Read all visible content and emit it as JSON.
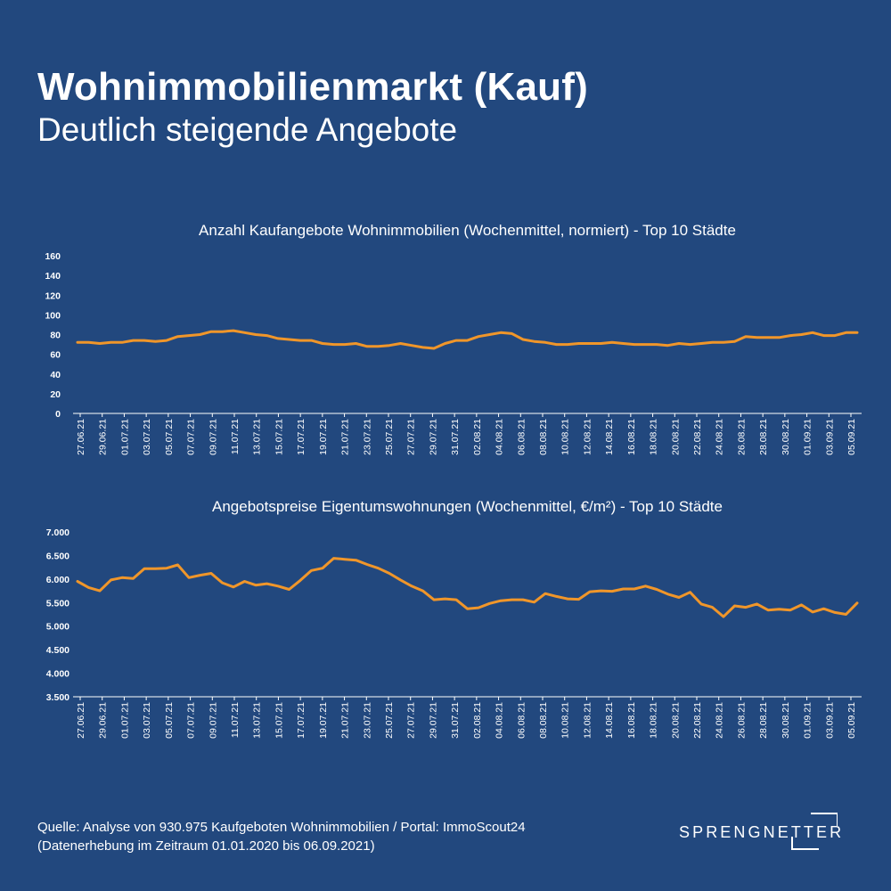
{
  "header": {
    "title": "Wohnimmobilienmarkt (Kauf)",
    "subtitle": "Deutlich steigende Angebote"
  },
  "colors": {
    "background": "#22487e",
    "line": "#f0962a",
    "text": "#ffffff",
    "axis": "#ffffff"
  },
  "chart_data": [
    {
      "type": "line",
      "title": "Anzahl Kaufangebote Wohnimmobilien (Wochenmittel, normiert) - Top 10 Städte",
      "xlabel": "",
      "ylabel": "",
      "ylim": [
        0,
        160
      ],
      "yticks": [
        0,
        20,
        40,
        60,
        80,
        100,
        120,
        140,
        160
      ],
      "ytick_labels": [
        "0",
        "20",
        "40",
        "60",
        "80",
        "100",
        "120",
        "140",
        "160"
      ],
      "xtick_labels": [
        "27.06.21",
        "29.06.21",
        "01.07.21",
        "03.07.21",
        "05.07.21",
        "07.07.21",
        "09.07.21",
        "11.07.21",
        "13.07.21",
        "15.07.21",
        "17.07.21",
        "19.07.21",
        "21.07.21",
        "23.07.21",
        "25.07.21",
        "27.07.21",
        "29.07.21",
        "31.07.21",
        "02.08.21",
        "04.08.21",
        "06.08.21",
        "08.08.21",
        "10.08.21",
        "12.08.21",
        "14.08.21",
        "16.08.21",
        "18.08.21",
        "20.08.21",
        "22.08.21",
        "24.08.21",
        "26.08.21",
        "28.08.21",
        "30.08.21",
        "01.09.21",
        "03.09.21",
        "05.09.21"
      ],
      "grid": false,
      "legend": "none",
      "series": [
        {
          "values": [
            72,
            72,
            71,
            72,
            72,
            74,
            74,
            73,
            74,
            78,
            79,
            80,
            83,
            83,
            84,
            82,
            80,
            79,
            76,
            75,
            74,
            74,
            71,
            70,
            70,
            71,
            68,
            68,
            69,
            71,
            69,
            67,
            66,
            71,
            74,
            74,
            78,
            80,
            82,
            81,
            75,
            73,
            72,
            70,
            70,
            71,
            71,
            71,
            72,
            71,
            70,
            70,
            70,
            69,
            71,
            70,
            71,
            72,
            72,
            73,
            78,
            77,
            77,
            77,
            79,
            80,
            82,
            79,
            79,
            82,
            82
          ]
        }
      ]
    },
    {
      "type": "line",
      "title": "Angebotspreise Eigentumswohnungen (Wochenmittel, €/m²) - Top 10 Städte",
      "xlabel": "",
      "ylabel": "",
      "ylim": [
        3500,
        7000
      ],
      "yticks": [
        3500,
        4000,
        4500,
        5000,
        5500,
        6000,
        6500,
        7000
      ],
      "ytick_labels": [
        "3.500",
        "4.000",
        "4.500",
        "5.000",
        "5.500",
        "6.000",
        "6.500",
        "7.000"
      ],
      "xtick_labels": [
        "27.06.21",
        "29.06.21",
        "01.07.21",
        "03.07.21",
        "05.07.21",
        "07.07.21",
        "09.07.21",
        "11.07.21",
        "13.07.21",
        "15.07.21",
        "17.07.21",
        "19.07.21",
        "21.07.21",
        "23.07.21",
        "25.07.21",
        "27.07.21",
        "29.07.21",
        "31.07.21",
        "02.08.21",
        "04.08.21",
        "06.08.21",
        "08.08.21",
        "10.08.21",
        "12.08.21",
        "14.08.21",
        "16.08.21",
        "18.08.21",
        "20.08.21",
        "22.08.21",
        "24.08.21",
        "26.08.21",
        "28.08.21",
        "30.08.21",
        "01.09.21",
        "03.09.21",
        "05.09.21"
      ],
      "grid": false,
      "legend": "none",
      "series": [
        {
          "values": [
            5950,
            5820,
            5750,
            5980,
            6030,
            6010,
            6220,
            6220,
            6230,
            6300,
            6030,
            6080,
            6120,
            5920,
            5830,
            5950,
            5870,
            5900,
            5850,
            5780,
            5970,
            6180,
            6230,
            6440,
            6420,
            6400,
            6310,
            6230,
            6120,
            5980,
            5850,
            5750,
            5560,
            5580,
            5560,
            5370,
            5390,
            5480,
            5540,
            5560,
            5560,
            5510,
            5690,
            5630,
            5580,
            5570,
            5730,
            5750,
            5740,
            5790,
            5790,
            5850,
            5780,
            5680,
            5610,
            5720,
            5470,
            5400,
            5200,
            5430,
            5400,
            5470,
            5340,
            5360,
            5340,
            5450,
            5300,
            5370,
            5290,
            5250,
            5490
          ]
        }
      ]
    }
  ],
  "footer": {
    "source_line1": "Quelle: Analyse von 930.975 Kaufgeboten Wohnimmobilien / Portal: ImmoScout24",
    "source_line2": "(Datenerhebung im Zeitraum  01.01.2020 bis  06.09.2021)"
  },
  "logo": {
    "text": "SPRENGNETTER",
    "icon": "bracket-logo-icon"
  }
}
